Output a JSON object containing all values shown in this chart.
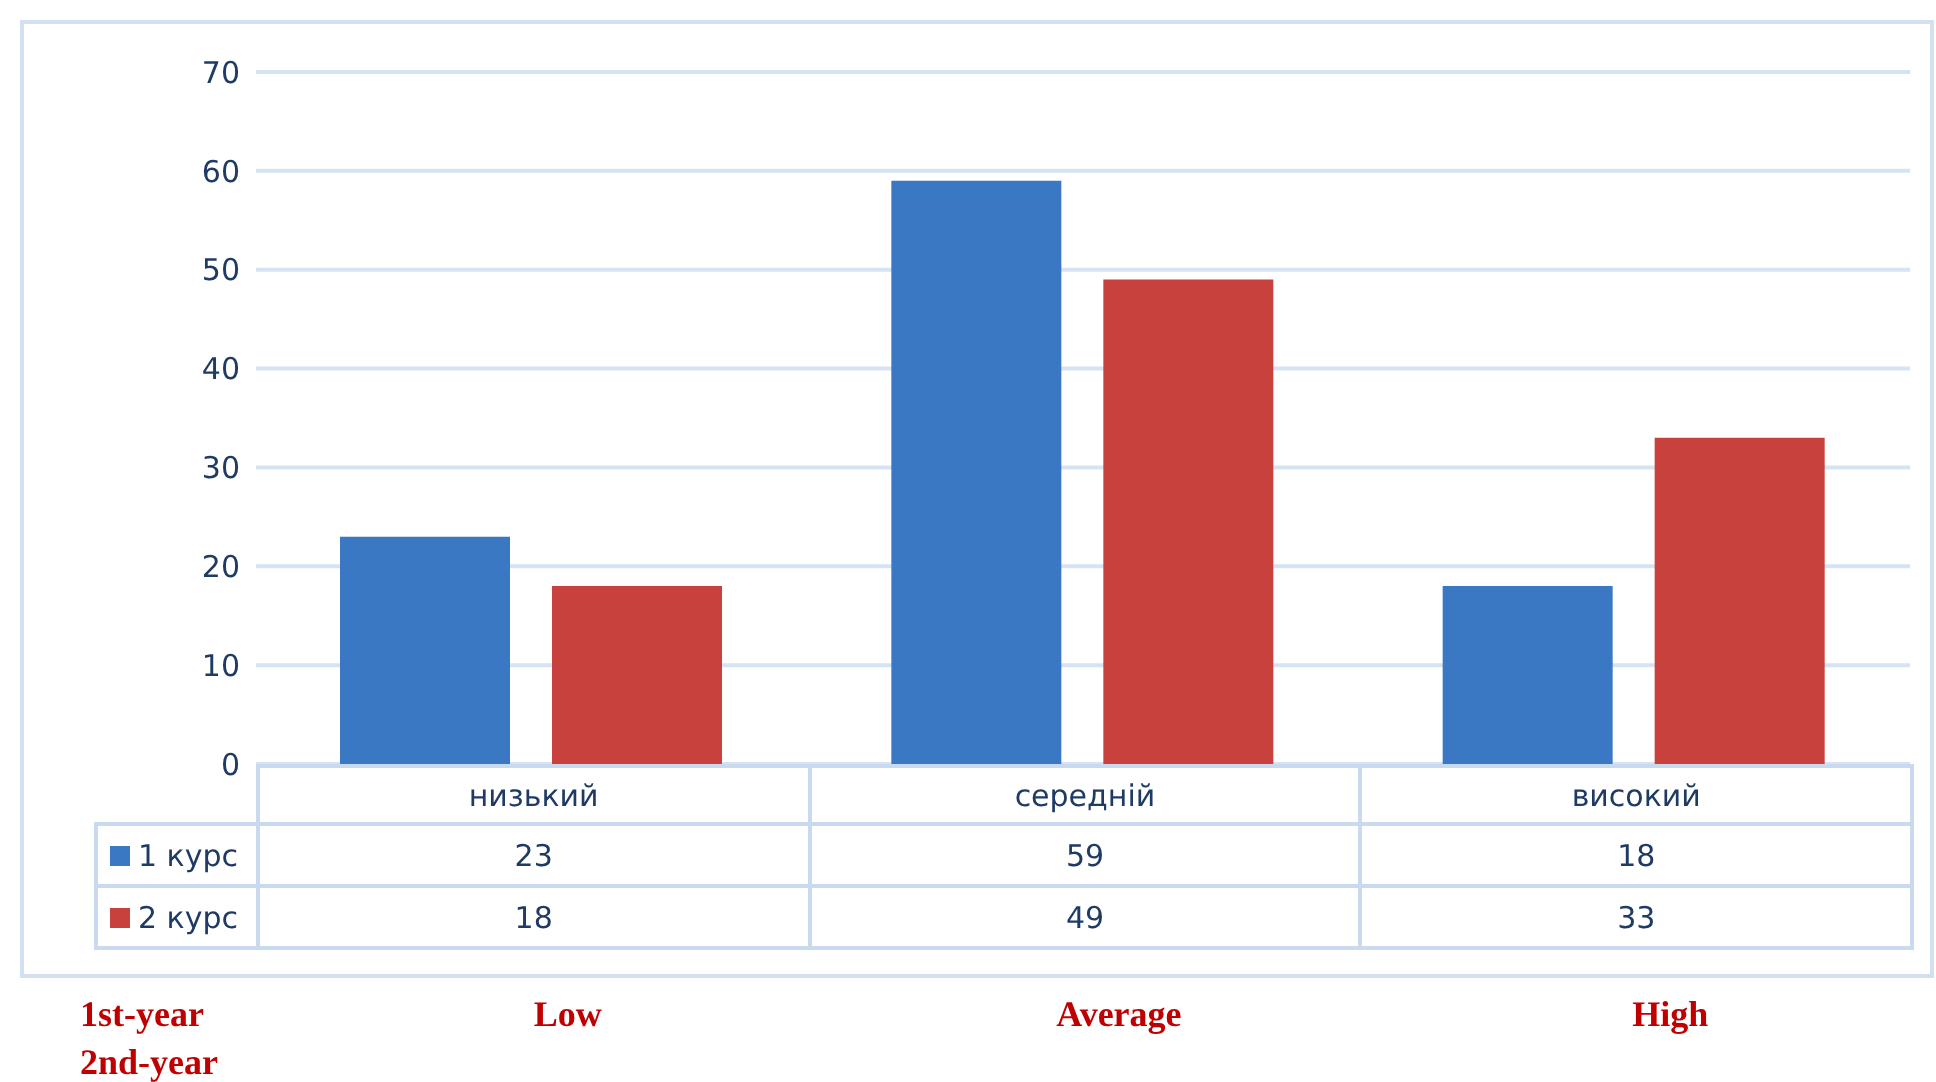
{
  "chart_data": {
    "type": "bar",
    "categories": [
      "низький",
      "середній",
      "високий"
    ],
    "series": [
      {
        "name": "1 курс",
        "color": "#3a78c4",
        "values": [
          23,
          59,
          18
        ]
      },
      {
        "name": "2 курс",
        "color": "#c8413c",
        "values": [
          18,
          49,
          33
        ]
      }
    ],
    "ylim": [
      0,
      70
    ],
    "yticks": [
      0,
      10,
      20,
      30,
      40,
      50,
      60,
      70
    ],
    "grid": "y",
    "legend": "bottom",
    "data_labels": true,
    "annotations": [
      "1st-year",
      "2nd-year",
      "Low",
      "Average",
      "High"
    ]
  }
}
